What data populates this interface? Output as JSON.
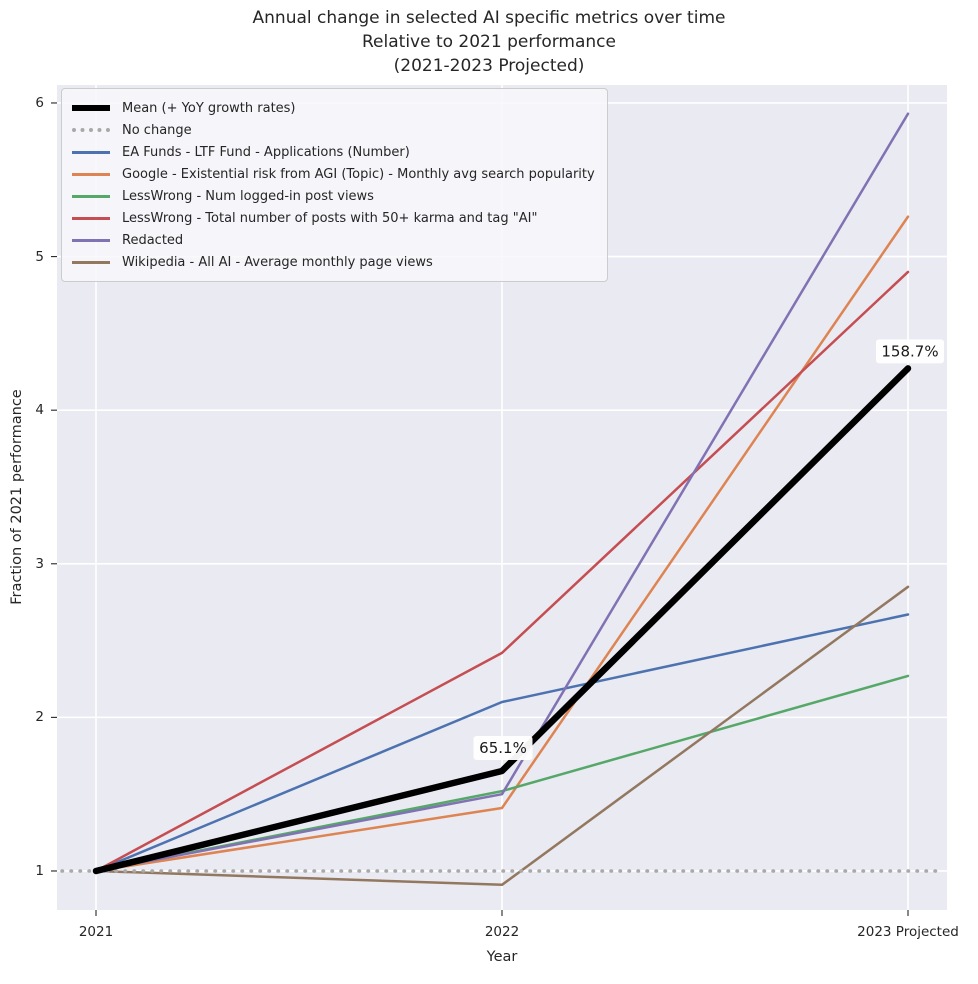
{
  "chart_data": {
    "type": "line",
    "title": "Annual change in selected AI specific metrics over time",
    "subtitle": "Relative to 2021 performance",
    "subtitle2": "(2021-2023 Projected)",
    "xlabel": "Year",
    "ylabel": "Fraction of 2021 performance",
    "x_ticklabels": [
      "2021",
      "2022",
      "2023 Projected"
    ],
    "y_ticks": [
      1,
      2,
      3,
      4,
      5,
      6
    ],
    "ylim": [
      0.746,
      6.117
    ],
    "grid": true,
    "legend_position": "upper-left",
    "plot_background": "#eaeaf2",
    "gridline_color": "#ffffff",
    "series": [
      {
        "name": "Mean (+ YoY growth rates)",
        "role": "mean",
        "color": "#000000",
        "width": 6.5,
        "values": [
          1.0,
          1.651,
          4.272
        ]
      },
      {
        "name": "No change",
        "role": "reference",
        "color": "#a9a9a9",
        "width": 3.5,
        "values": [
          1.0,
          1.0,
          1.0
        ]
      },
      {
        "name": "EA Funds - LTF Fund - Applications (Number)",
        "role": "metric",
        "color": "#4c72b0",
        "width": 2.5,
        "values": [
          1.0,
          2.1,
          2.67
        ]
      },
      {
        "name": "Google - Existential risk from AGI (Topic) - Monthly avg search popularity",
        "role": "metric",
        "color": "#dd8452",
        "width": 2.5,
        "values": [
          1.0,
          1.41,
          5.26
        ]
      },
      {
        "name": "LessWrong - Num logged-in post views",
        "role": "metric",
        "color": "#55a868",
        "width": 2.5,
        "values": [
          1.0,
          1.52,
          2.27
        ]
      },
      {
        "name": "LessWrong - Total number of posts with 50+ karma and tag \"AI\"",
        "role": "metric",
        "color": "#c44e52",
        "width": 2.5,
        "values": [
          1.0,
          2.42,
          4.9
        ]
      },
      {
        "name": "Redacted",
        "role": "metric",
        "color": "#8172b3",
        "width": 2.5,
        "values": [
          1.0,
          1.5,
          5.93
        ]
      },
      {
        "name": "Wikipedia - All AI - Average monthly page views",
        "role": "metric",
        "color": "#937860",
        "width": 2.5,
        "values": [
          1.0,
          0.91,
          2.85
        ]
      }
    ],
    "annotations": [
      {
        "text": "65.1%",
        "x_index": 1,
        "y": 1.651
      },
      {
        "text": "158.7%",
        "x_index": 2,
        "y": 4.272
      }
    ]
  }
}
